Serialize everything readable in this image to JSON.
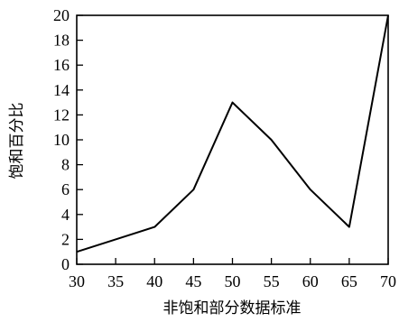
{
  "chart_data": {
    "type": "line",
    "title": "",
    "xlabel": "非饱和部分数据标准",
    "ylabel": "饱和百分比",
    "x": [
      30,
      35,
      40,
      45,
      50,
      55,
      60,
      65,
      70
    ],
    "series": [
      {
        "values": [
          1,
          2,
          3,
          6,
          13,
          10,
          6,
          3,
          20
        ]
      }
    ],
    "xlim": [
      30,
      70
    ],
    "ylim": [
      0,
      20
    ],
    "xticks": [
      "30",
      "35",
      "40",
      "45",
      "50",
      "55",
      "60",
      "65",
      "70"
    ],
    "yticks": [
      "0",
      "2",
      "4",
      "6",
      "8",
      "10",
      "12",
      "14",
      "16",
      "18",
      "20"
    ],
    "grid": false,
    "legend": "none",
    "line_color": "#000000"
  }
}
